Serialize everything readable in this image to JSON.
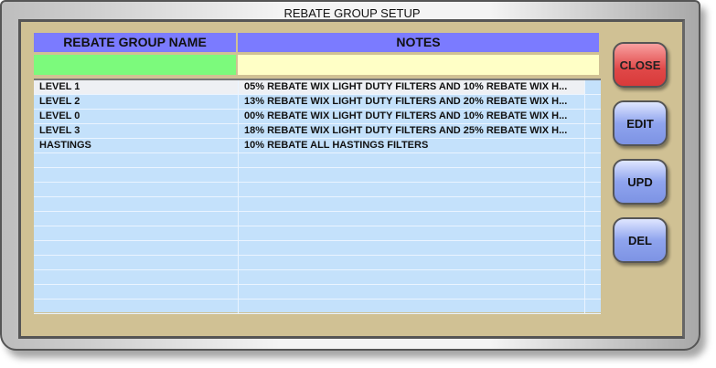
{
  "window": {
    "title": "REBATE GROUP SETUP"
  },
  "table": {
    "columns": [
      "REBATE GROUP NAME",
      "NOTES"
    ],
    "filters": {
      "name": "",
      "notes": ""
    },
    "rows": [
      {
        "name": "LEVEL 1",
        "notes": "05% REBATE WIX LIGHT DUTY FILTERS AND 10% REBATE WIX H..."
      },
      {
        "name": "LEVEL 2",
        "notes": "13% REBATE WIX LIGHT DUTY FILTERS AND 20% REBATE WIX H..."
      },
      {
        "name": "LEVEL 0",
        "notes": "00% REBATE WIX LIGHT DUTY FILTERS AND 10% REBATE WIX H..."
      },
      {
        "name": "LEVEL 3",
        "notes": "18% REBATE WIX LIGHT DUTY FILTERS AND 25% REBATE WIX H..."
      },
      {
        "name": "HASTINGS",
        "notes": "10% REBATE ALL HASTINGS FILTERS"
      }
    ]
  },
  "buttons": {
    "close": "CLOSE",
    "edit": "EDIT",
    "upd": "UPD",
    "del": "DEL"
  },
  "colors": {
    "header": "#7b7bff",
    "name_filter": "#7cfa7c",
    "notes_filter": "#ffffc6",
    "grid": "#c4e1fb",
    "close": "#e04848",
    "action": "#8fa4ee"
  }
}
